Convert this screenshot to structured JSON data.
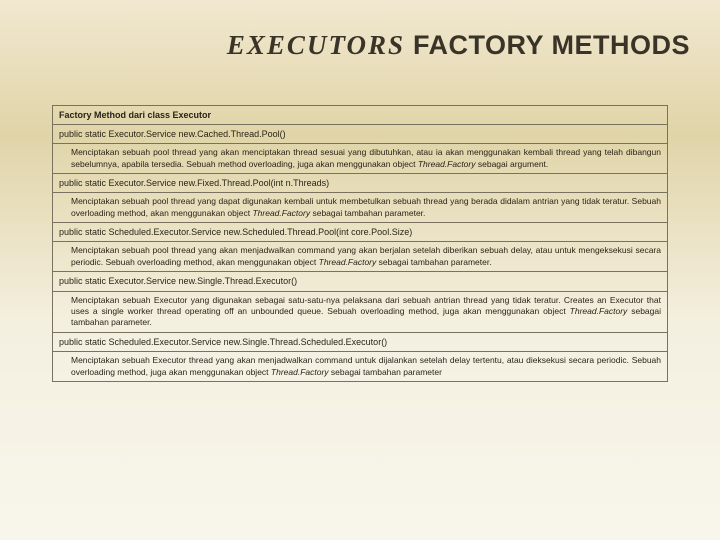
{
  "title_italic": "EXECUTORS",
  "title_rest": " FACTORY METHODS",
  "table_header": "Factory Method dari class Executor",
  "rows": [
    {
      "sig": "public static Executor.Service new.Cached.Thread.Pool()",
      "desc": "Menciptakan sebuah pool thread yang akan menciptakan thread sesuai yang dibutuhkan, atau ia akan menggunakan kembali thread yang telah dibangun sebelumnya, apabila tersedia. Sebuah method overloading, juga akan menggunakan object ",
      "ital": "Thread.Factory",
      "desc2": " sebagai argument."
    },
    {
      "sig": "public static Executor.Service new.Fixed.Thread.Pool(int n.Threads)",
      "desc": "Menciptakan sebuah pool thread yang dapat digunakan kembali untuk membetulkan sebuah thread yang berada didalam antrian yang tidak teratur. Sebuah overloading method, akan menggunakan object ",
      "ital": "Thread.Factory",
      "desc2": " sebagai tambahan parameter."
    },
    {
      "sig": "public static Scheduled.Executor.Service new.Scheduled.Thread.Pool(int core.Pool.Size)",
      "desc": "Menciptakan sebuah pool thread yang akan menjadwalkan command yang akan berjalan setelah diberikan sebuah delay, atau untuk mengeksekusi secara periodic. Sebuah overloading method, akan menggunakan object ",
      "ital": "Thread.Factory",
      "desc2": " sebagai tambahan parameter."
    },
    {
      "sig": "public static Executor.Service new.Single.Thread.Executor()",
      "desc": "Menciptakan sebuah Executor yang digunakan sebagai satu-satu-nya pelaksana dari sebuah antrian thread yang tidak teratur. Creates an Executor that uses a single worker thread operating off an unbounded queue. Sebuah overloading method, juga akan menggunakan object ",
      "ital": "Thread.Factory",
      "desc2": " sebagai tambahan parameter."
    },
    {
      "sig": "public static Scheduled.Executor.Service new.Single.Thread.Scheduled.Executor()",
      "desc": "Menciptakan sebuah Executor thread yang akan menjadwalkan command untuk dijalankan setelah delay tertentu, atau dieksekusi secara periodic. Sebuah overloading method, juga akan menggunakan object ",
      "ital": "Thread.Factory",
      "desc2": " sebagai tambahan parameter"
    }
  ]
}
